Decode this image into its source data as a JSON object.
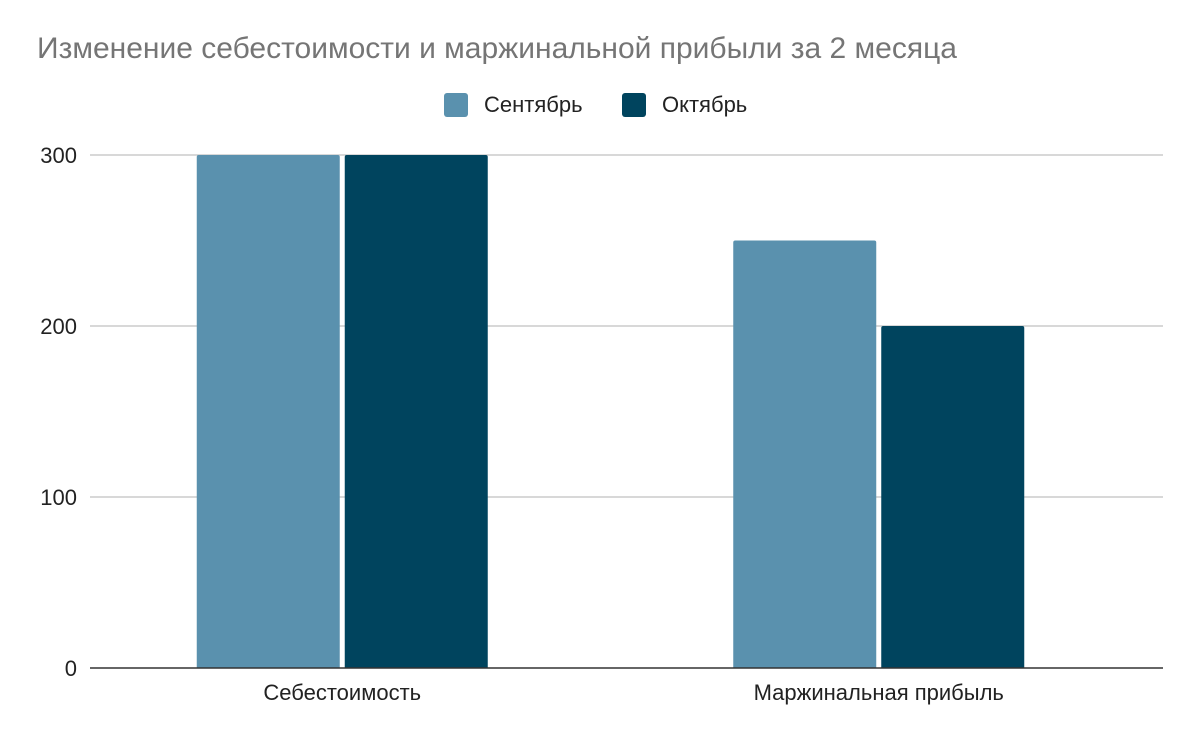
{
  "chart_data": {
    "type": "bar",
    "title": "Изменение себестоимости и маржинальной прибыли за 2 месяца",
    "categories": [
      "Себестоимость",
      "Маржинальная прибыль"
    ],
    "series": [
      {
        "name": "Сентябрь",
        "values": [
          300,
          250
        ],
        "color": "#5a91ae"
      },
      {
        "name": "Октябрь",
        "values": [
          300,
          200
        ],
        "color": "#00445e"
      }
    ],
    "ylim": [
      0,
      300
    ],
    "yticks": [
      "0",
      "100",
      "200",
      "300"
    ],
    "ytick_values": [
      0,
      100,
      200,
      300
    ],
    "grid": true,
    "legend_position": "top-center",
    "xlabel": "",
    "ylabel": ""
  }
}
